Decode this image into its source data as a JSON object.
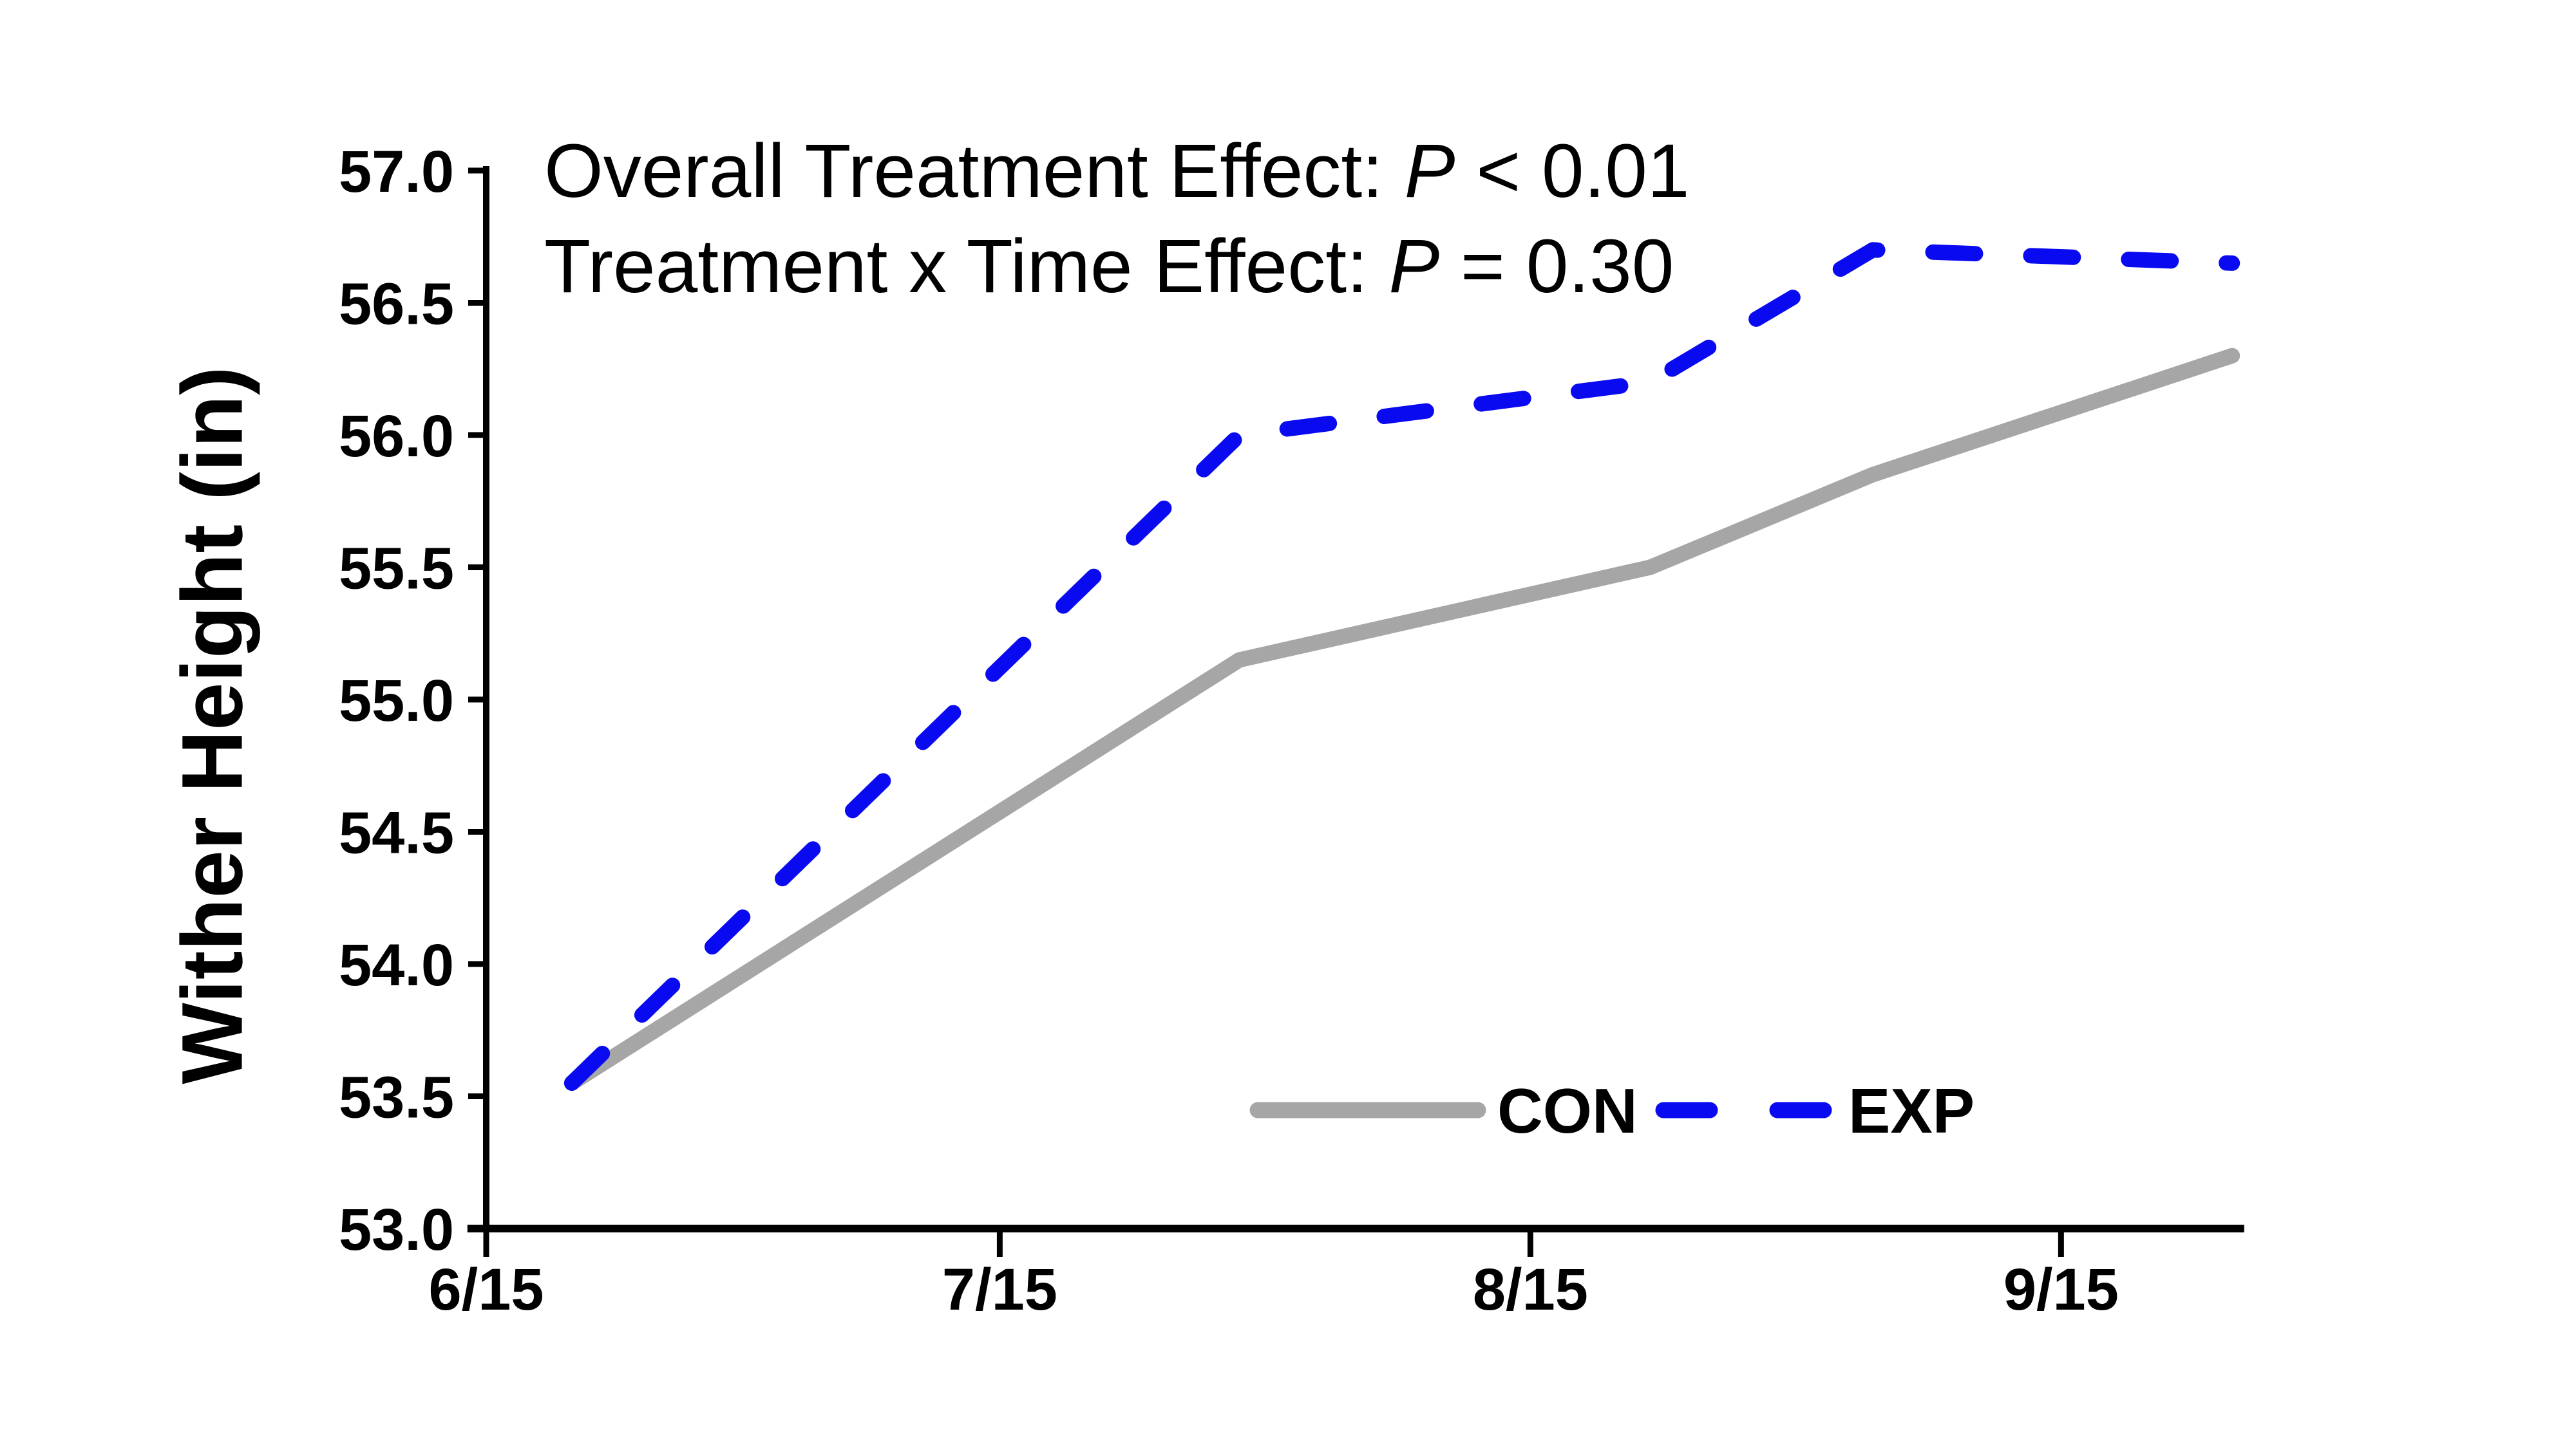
{
  "page": {
    "background": "#FFFFFF"
  },
  "chart_data": {
    "type": "line",
    "title": "",
    "xlabel": "",
    "ylabel": "Wither Height (in)",
    "ylim": [
      53.0,
      57.0
    ],
    "y_ticks": [
      57.0,
      56.5,
      56.0,
      55.5,
      55.0,
      54.5,
      54.0,
      53.5,
      53.0
    ],
    "y_tick_labels": [
      "57.0",
      "56.5",
      "56.0",
      "55.5",
      "55.0",
      "54.5",
      "54.0",
      "53.5",
      "53.0"
    ],
    "x_ticks": [
      {
        "label": "6/15",
        "day": 0
      },
      {
        "label": "7/15",
        "day": 30
      },
      {
        "label": "8/15",
        "day": 61
      },
      {
        "label": "9/15",
        "day": 92
      }
    ],
    "x_axis_days_range": [
      -1.1,
      102.7
    ],
    "grid": false,
    "legend_position": "inside-bottom-right",
    "annotations": [
      {
        "prefix": "Overall Treatment Effect: ",
        "stat_symbol": "P",
        "suffix": " < 0.01"
      },
      {
        "prefix": "Treatment x Time Effect: ",
        "stat_symbol": "P",
        "suffix": " = 0.30"
      }
    ],
    "series": [
      {
        "name": "CON",
        "color": "#A6A6A6",
        "line_style": "solid",
        "points": [
          {
            "day": 5,
            "date": "6/20",
            "value": 53.55
          },
          {
            "day": 44,
            "date": "7/29",
            "value": 55.15
          },
          {
            "day": 68,
            "date": "8/22",
            "value": 55.5
          },
          {
            "day": 81,
            "date": "9/4",
            "value": 55.85
          },
          {
            "day": 102,
            "date": "9/25",
            "value": 56.3
          }
        ]
      },
      {
        "name": "EXP",
        "color": "#0A0AF0",
        "line_style": "dashed",
        "points": [
          {
            "day": 5,
            "date": "6/20",
            "value": 53.55
          },
          {
            "day": 44,
            "date": "7/29",
            "value": 56.0
          },
          {
            "day": 68,
            "date": "8/22",
            "value": 56.2
          },
          {
            "day": 81,
            "date": "9/4",
            "value": 56.7
          },
          {
            "day": 102,
            "date": "9/25",
            "value": 56.65
          }
        ]
      }
    ]
  }
}
